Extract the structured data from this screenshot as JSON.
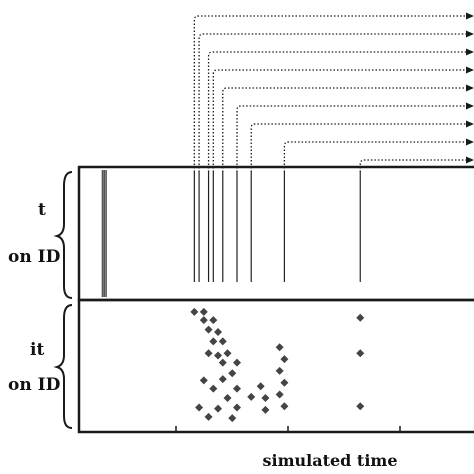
{
  "labels": {
    "top_panel_line1": "t",
    "top_panel_line2": "on ID",
    "bottom_panel_line1": "it",
    "bottom_panel_line2": "on ID",
    "x_axis": "simulated time"
  },
  "colors": {
    "ink": "#1a1a1a",
    "band": "#555555",
    "marker": "#444444"
  },
  "events": {
    "vertical_band_time": 0.22,
    "spike_times": [
      0.41,
      0.42,
      0.44,
      0.45,
      0.47,
      0.5,
      0.53,
      0.6,
      0.76
    ],
    "arrow_times": [
      0.41,
      0.42,
      0.44,
      0.45,
      0.47,
      0.5,
      0.53,
      0.6,
      0.76
    ]
  },
  "markers": [
    {
      "t": 0.41,
      "id": 0.05
    },
    {
      "t": 0.43,
      "id": 0.05
    },
    {
      "t": 0.43,
      "id": 0.12
    },
    {
      "t": 0.45,
      "id": 0.12
    },
    {
      "t": 0.44,
      "id": 0.2
    },
    {
      "t": 0.46,
      "id": 0.22
    },
    {
      "t": 0.45,
      "id": 0.3
    },
    {
      "t": 0.47,
      "id": 0.3
    },
    {
      "t": 0.44,
      "id": 0.4
    },
    {
      "t": 0.46,
      "id": 0.42
    },
    {
      "t": 0.48,
      "id": 0.4
    },
    {
      "t": 0.47,
      "id": 0.48
    },
    {
      "t": 0.5,
      "id": 0.48
    },
    {
      "t": 0.49,
      "id": 0.57
    },
    {
      "t": 0.43,
      "id": 0.63
    },
    {
      "t": 0.47,
      "id": 0.62
    },
    {
      "t": 0.45,
      "id": 0.7
    },
    {
      "t": 0.5,
      "id": 0.7
    },
    {
      "t": 0.55,
      "id": 0.68
    },
    {
      "t": 0.48,
      "id": 0.78
    },
    {
      "t": 0.53,
      "id": 0.77
    },
    {
      "t": 0.56,
      "id": 0.78
    },
    {
      "t": 0.42,
      "id": 0.86
    },
    {
      "t": 0.46,
      "id": 0.87
    },
    {
      "t": 0.5,
      "id": 0.86
    },
    {
      "t": 0.56,
      "id": 0.88
    },
    {
      "t": 0.44,
      "id": 0.94
    },
    {
      "t": 0.49,
      "id": 0.95
    },
    {
      "t": 0.59,
      "id": 0.35
    },
    {
      "t": 0.6,
      "id": 0.45
    },
    {
      "t": 0.59,
      "id": 0.55
    },
    {
      "t": 0.6,
      "id": 0.65
    },
    {
      "t": 0.59,
      "id": 0.75
    },
    {
      "t": 0.6,
      "id": 0.85
    },
    {
      "t": 0.76,
      "id": 0.1
    },
    {
      "t": 0.76,
      "id": 0.4
    },
    {
      "t": 0.76,
      "id": 0.85
    }
  ]
}
